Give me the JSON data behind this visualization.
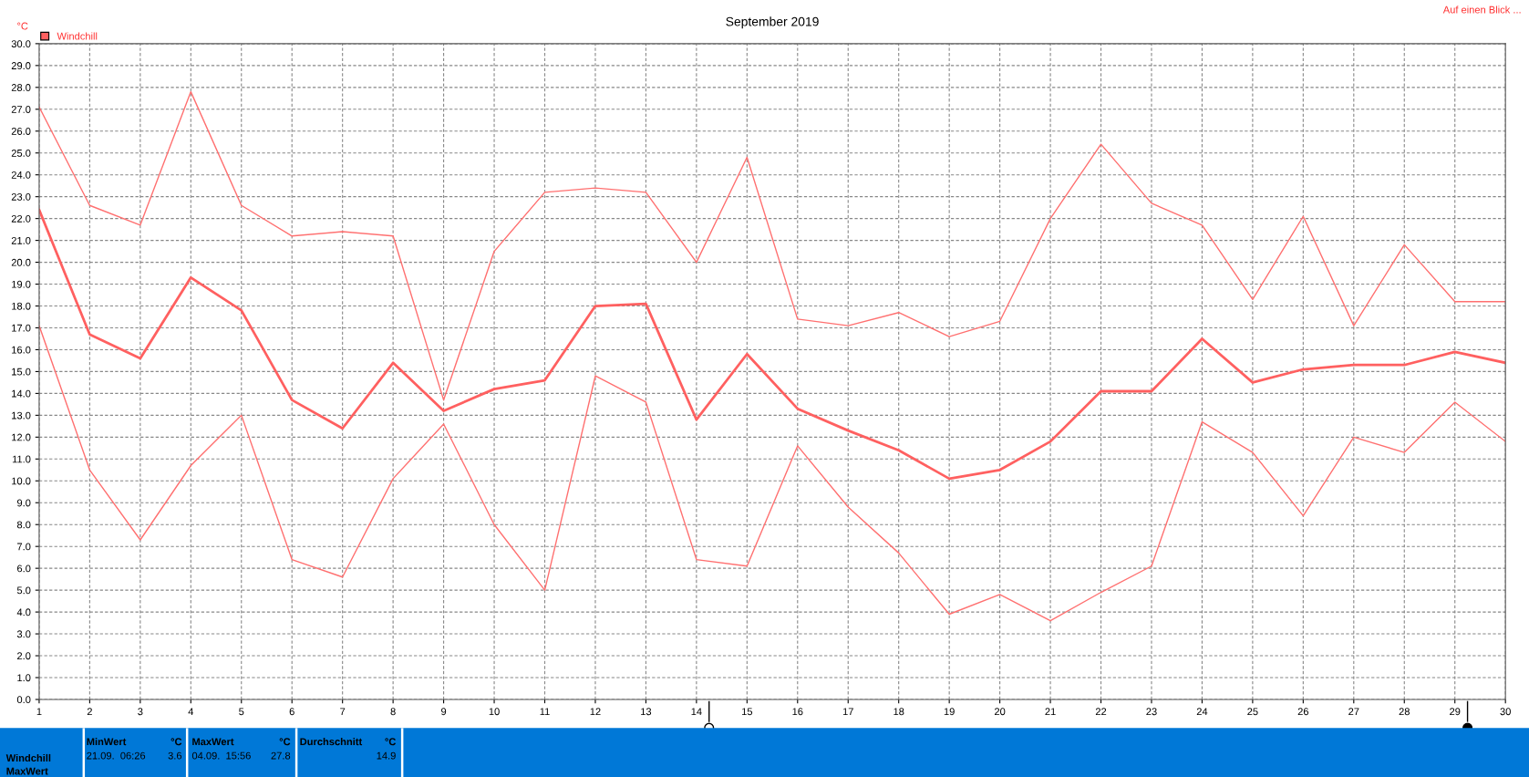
{
  "chart_data": {
    "type": "line",
    "title": "September 2019",
    "ylabel": "°C",
    "x": [
      1,
      2,
      3,
      4,
      5,
      6,
      7,
      8,
      9,
      10,
      11,
      12,
      13,
      14,
      15,
      16,
      17,
      18,
      19,
      20,
      21,
      22,
      23,
      24,
      25,
      26,
      27,
      28,
      29,
      30
    ],
    "series": [
      {
        "color": "#ff7070",
        "values": [
          27.1,
          22.6,
          21.7,
          27.8,
          22.6,
          21.2,
          21.4,
          21.2,
          13.7,
          20.5,
          23.2,
          23.4,
          23.2,
          20.0,
          24.8,
          17.4,
          17.1,
          17.7,
          16.6,
          17.3,
          22.0,
          25.4,
          22.7,
          21.7,
          18.3,
          22.1,
          17.1,
          20.8,
          18.2,
          18.2
        ]
      },
      {
        "name": "Windchill",
        "color": "#ff6060",
        "values": [
          22.4,
          16.7,
          15.6,
          19.3,
          17.8,
          13.7,
          12.4,
          15.4,
          13.2,
          14.2,
          14.6,
          18.0,
          18.1,
          12.8,
          15.8,
          13.3,
          12.3,
          11.4,
          10.1,
          10.5,
          11.8,
          14.1,
          14.1,
          16.5,
          14.5,
          15.1,
          15.3,
          15.3,
          15.9,
          15.4
        ]
      },
      {
        "color": "#ff7070",
        "values": [
          17.1,
          10.5,
          7.3,
          10.7,
          13.0,
          6.4,
          5.6,
          10.1,
          12.6,
          8.0,
          5.0,
          14.8,
          13.6,
          6.4,
          6.1,
          11.6,
          8.8,
          6.7,
          3.9,
          4.8,
          3.6,
          4.9,
          6.1,
          12.7,
          11.3,
          8.4,
          12.0,
          11.3,
          13.6,
          11.8
        ]
      }
    ],
    "xlim": [
      1,
      30
    ],
    "xticks": [
      1,
      2,
      3,
      4,
      5,
      6,
      7,
      8,
      9,
      10,
      11,
      12,
      13,
      14,
      15,
      16,
      17,
      18,
      19,
      20,
      21,
      22,
      23,
      24,
      25,
      26,
      27,
      28,
      29,
      30
    ],
    "ylim": [
      0,
      30
    ],
    "yticks": [
      {
        "value": 0,
        "label": "0.0"
      },
      {
        "value": 1,
        "label": "1.0"
      },
      {
        "value": 2,
        "label": "2.0"
      },
      {
        "value": 3,
        "label": "3.0"
      },
      {
        "value": 4,
        "label": "4.0"
      },
      {
        "value": 5,
        "label": "5.0"
      },
      {
        "value": 6,
        "label": "6.0"
      },
      {
        "value": 7,
        "label": "7.0"
      },
      {
        "value": 8,
        "label": "8.0"
      },
      {
        "value": 9,
        "label": "9.0"
      },
      {
        "value": 10,
        "label": "10.0"
      },
      {
        "value": 11,
        "label": "11.0"
      },
      {
        "value": 12,
        "label": "12.0"
      },
      {
        "value": 13,
        "label": "13.0"
      },
      {
        "value": 14,
        "label": "14.0"
      },
      {
        "value": 15,
        "label": "15.0"
      },
      {
        "value": 16,
        "label": "16.0"
      },
      {
        "value": 17,
        "label": "17.0"
      },
      {
        "value": 18,
        "label": "18.0"
      },
      {
        "value": 19,
        "label": "19.0"
      },
      {
        "value": 20,
        "label": "20.0"
      },
      {
        "value": 21,
        "label": "21.0"
      },
      {
        "value": 22,
        "label": "22.0"
      },
      {
        "value": 23,
        "label": "23.0"
      },
      {
        "value": 24,
        "label": "24.0"
      },
      {
        "value": 25,
        "label": "25.0"
      },
      {
        "value": 26,
        "label": "26.0"
      },
      {
        "value": 27,
        "label": "27.0"
      },
      {
        "value": 28,
        "label": "28.0"
      },
      {
        "value": 29,
        "label": "29.0"
      },
      {
        "value": 30,
        "label": "30.0"
      }
    ],
    "grid": true,
    "legend": "top left",
    "marker": "none",
    "line_style": "solid",
    "annotations": [
      "Auf einen Blick ...",
      "MinWert",
      "°C",
      "21.09.  06:26",
      "3.6",
      "MaxWert",
      "°C",
      "04.09.  15:56",
      "27.8",
      "Durchschnitt",
      "°C",
      "14.9",
      "Windchill",
      "MaxWert"
    ]
  }
}
